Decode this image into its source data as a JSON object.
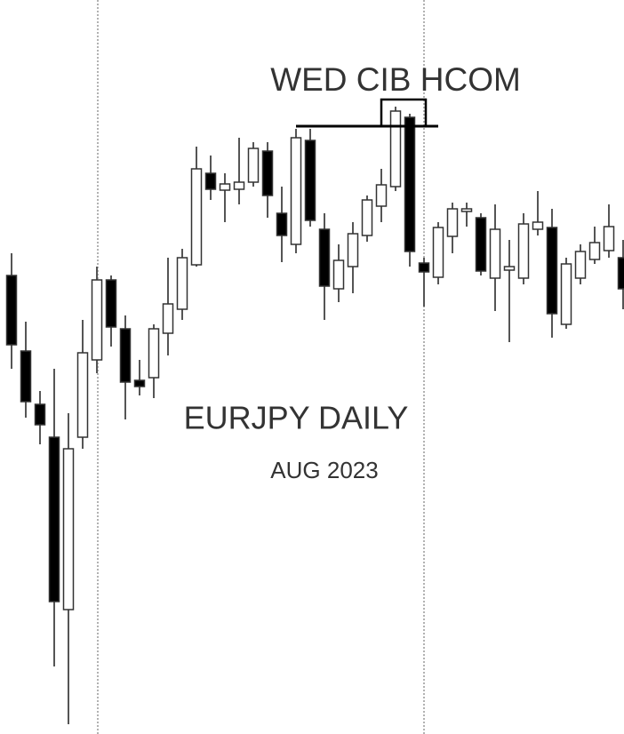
{
  "chart_data": {
    "type": "candlestick",
    "annotations": [
      "WED CIB HCOM",
      "EURJPY DAILY",
      "AUG 2023"
    ],
    "open": [
      516,
      431,
      371,
      334,
      140,
      334,
      421,
      511,
      456,
      398,
      401,
      451,
      478,
      528,
      631,
      612,
      613,
      621,
      656,
      586,
      551,
      668,
      568,
      501,
      526,
      561,
      594,
      616,
      694,
      530,
      514,
      560,
      588,
      581,
      513,
      522,
      513,
      568,
      570,
      461,
      513,
      534,
      544,
      536
    ],
    "high": [
      541,
      464,
      386,
      411,
      361,
      466,
      526,
      516,
      471,
      421,
      461,
      536,
      546,
      661,
      651,
      631,
      671,
      666,
      666,
      616,
      681,
      681,
      586,
      551,
      576,
      606,
      636,
      706,
      698,
      536,
      576,
      598,
      598,
      586,
      596,
      556,
      586,
      611,
      591,
      536,
      551,
      571,
      596,
      556
    ],
    "low": [
      411,
      356,
      326,
      76,
      11,
      321,
      406,
      436,
      354,
      381,
      378,
      426,
      466,
      526,
      601,
      576,
      596,
      616,
      581,
      531,
      541,
      571,
      466,
      486,
      496,
      554,
      576,
      611,
      526,
      481,
      506,
      541,
      571,
      516,
      476,
      441,
      506,
      561,
      446,
      456,
      506,
      529,
      536,
      478
    ],
    "close": [
      438,
      374,
      348,
      149,
      321,
      429,
      511,
      458,
      396,
      391,
      456,
      484,
      536,
      636,
      613,
      619,
      621,
      659,
      606,
      561,
      671,
      578,
      504,
      533,
      563,
      601,
      618,
      701,
      543,
      520,
      570,
      591,
      591,
      521,
      568,
      526,
      574,
      576,
      473,
      529,
      543,
      553,
      571,
      501
    ],
    "up_color": "#ffffff",
    "down_color": "#000000",
    "level": 684,
    "ylim": [
      0,
      826
    ]
  }
}
